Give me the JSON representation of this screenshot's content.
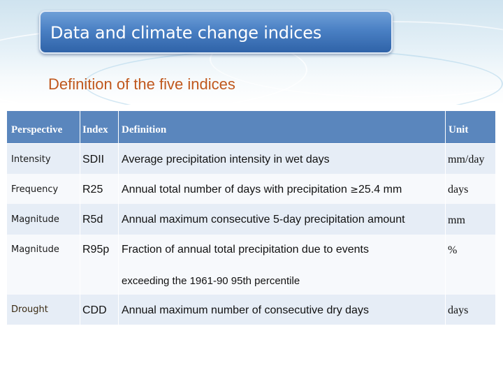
{
  "slide": {
    "title": "Data and climate change indices",
    "subtitle": "Definition of the five indices"
  },
  "table": {
    "headers": {
      "perspective": "Perspective",
      "index": "Index",
      "definition": "Definition",
      "unit": "Unit"
    },
    "rows": [
      {
        "perspective": "Intensity",
        "index": "SDII",
        "definition": "Average precipitation intensity in wet days",
        "unit": "mm/day"
      },
      {
        "perspective": "Frequency",
        "index": "R25",
        "definition_pre": "Annual total number of days with precipitation ",
        "definition_symbol": "≥",
        "definition_post": "25.4 mm",
        "unit": "days"
      },
      {
        "perspective": "Magnitude",
        "index": "R5d",
        "definition": "Annual maximum consecutive 5-day precipitation amount",
        "unit": "mm"
      },
      {
        "perspective": "Magnitude",
        "index": "R95p",
        "definition_line1": "Fraction of annual total precipitation due to events",
        "definition_line2": "exceeding the 1961-90 95th percentile",
        "unit": "%"
      },
      {
        "perspective": "Drought",
        "index": "CDD",
        "definition": "Annual maximum number of consecutive dry days",
        "unit": "days"
      }
    ]
  },
  "colors": {
    "title_bar": "#4a80c4",
    "subtitle": "#c0581d",
    "header_bg": "#5a86bd",
    "row_band": "#e6edf6"
  }
}
